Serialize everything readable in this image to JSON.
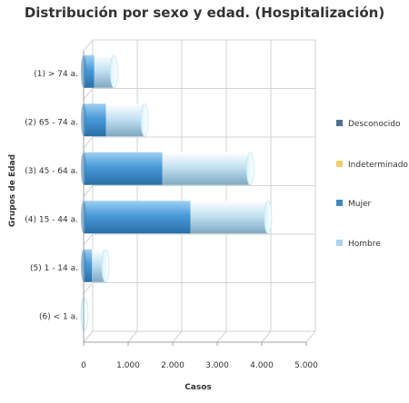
{
  "chart_data": {
    "type": "bar",
    "orientation": "horizontal",
    "stacked": true,
    "three_d": true,
    "title": "Distribución por sexo y edad. (Hospitalización)",
    "xlabel": "Casos",
    "ylabel": "Grupos de Edad",
    "xlim": [
      0,
      5000
    ],
    "xticks": [
      0,
      1000,
      2000,
      3000,
      4000,
      5000
    ],
    "xtick_labels": [
      "0",
      "1.000",
      "2.000",
      "3.000",
      "4.000",
      "5.000"
    ],
    "grid": true,
    "legend_position": "right",
    "categories": [
      "(1) > 74 a.",
      "(2) 65 - 74 a.",
      "(3) 45 - 64 a.",
      "(4) 15 - 44 a.",
      "(5) 1 - 14 a.",
      "(6) < 1 a."
    ],
    "series": [
      {
        "name": "Desconocido",
        "color": "#4f6f96",
        "values": [
          0,
          0,
          0,
          0,
          0,
          0
        ]
      },
      {
        "name": "Indeterminado",
        "color": "#f2cf6b",
        "values": [
          0,
          0,
          0,
          0,
          0,
          0
        ]
      },
      {
        "name": "Mujer",
        "color": "#3f88c5",
        "values": [
          240,
          500,
          1770,
          2400,
          190,
          10
        ]
      },
      {
        "name": "Hombre",
        "color": "#a9d4ee",
        "values": [
          440,
          870,
          1970,
          1740,
          300,
          10
        ]
      }
    ]
  }
}
